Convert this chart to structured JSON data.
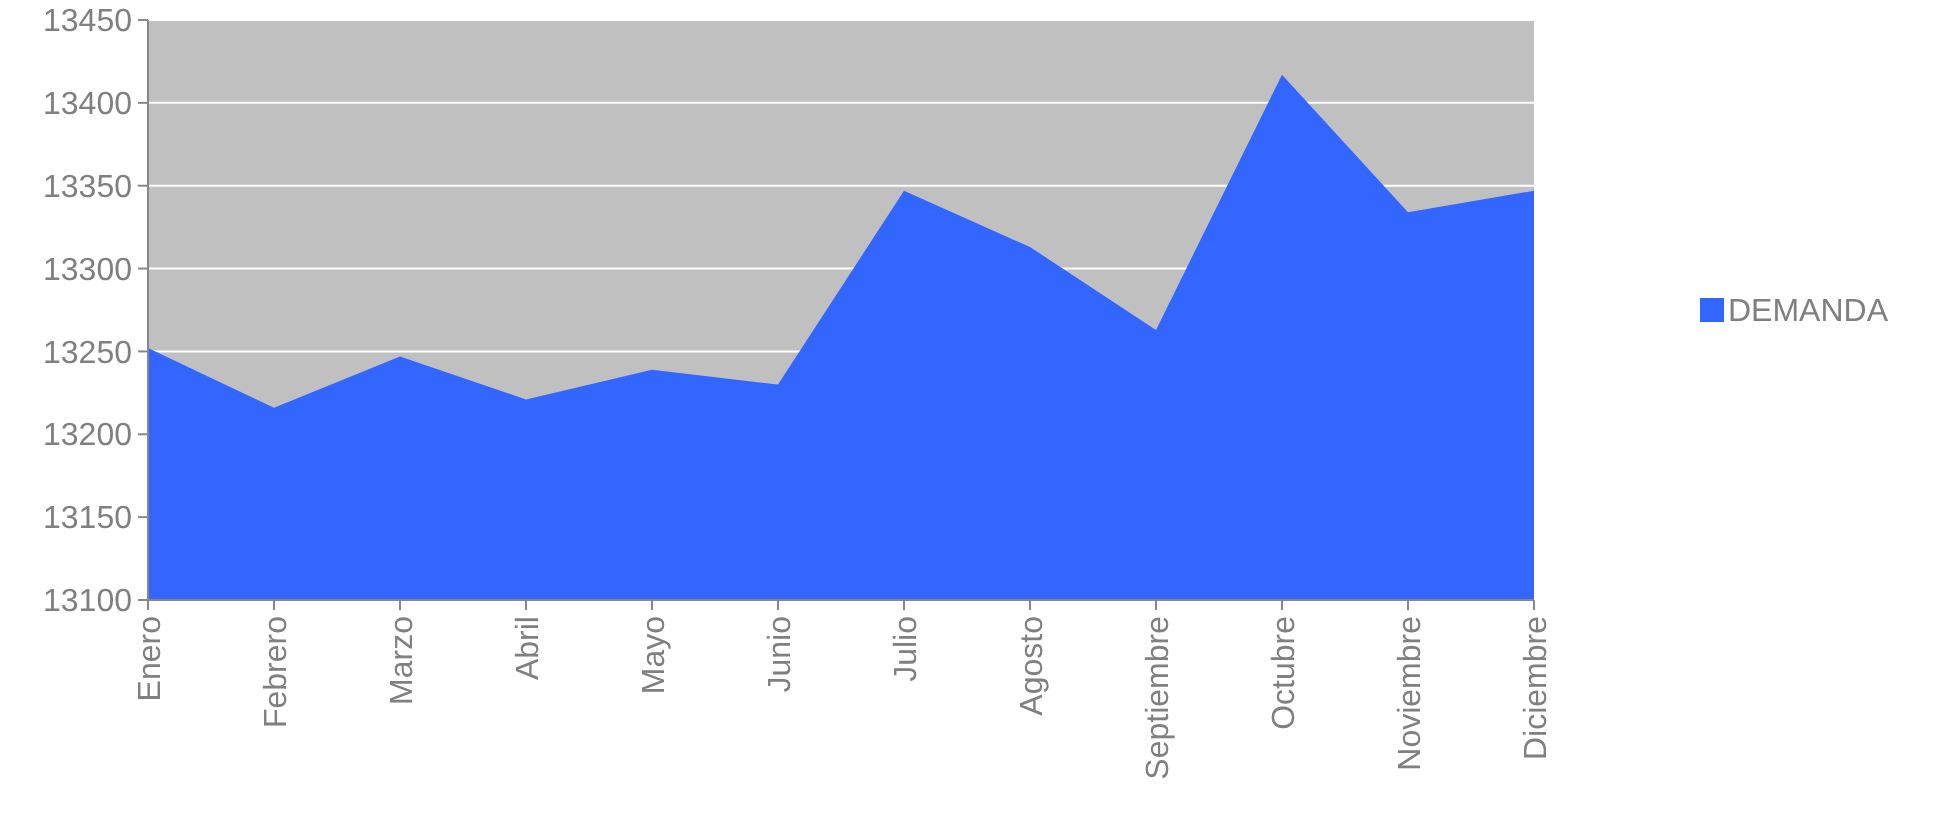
{
  "chart_data": {
    "type": "area",
    "categories": [
      "Enero",
      "Febrero",
      "Marzo",
      "Abril",
      "Mayo",
      "Junio",
      "Julio",
      "Agosto",
      "Septiembre",
      "Octubre",
      "Noviembre",
      "Diciembre"
    ],
    "series": [
      {
        "name": "DEMANDA",
        "color": "#3366ff",
        "values": [
          13252,
          13216,
          13247,
          13221,
          13239,
          13230,
          13347,
          13313,
          13263,
          13417,
          13334,
          13347
        ]
      }
    ],
    "ylim": [
      13100,
      13450
    ],
    "yticks": [
      13100,
      13150,
      13200,
      13250,
      13300,
      13350,
      13400,
      13450
    ],
    "grid": "y",
    "legend": "right"
  }
}
